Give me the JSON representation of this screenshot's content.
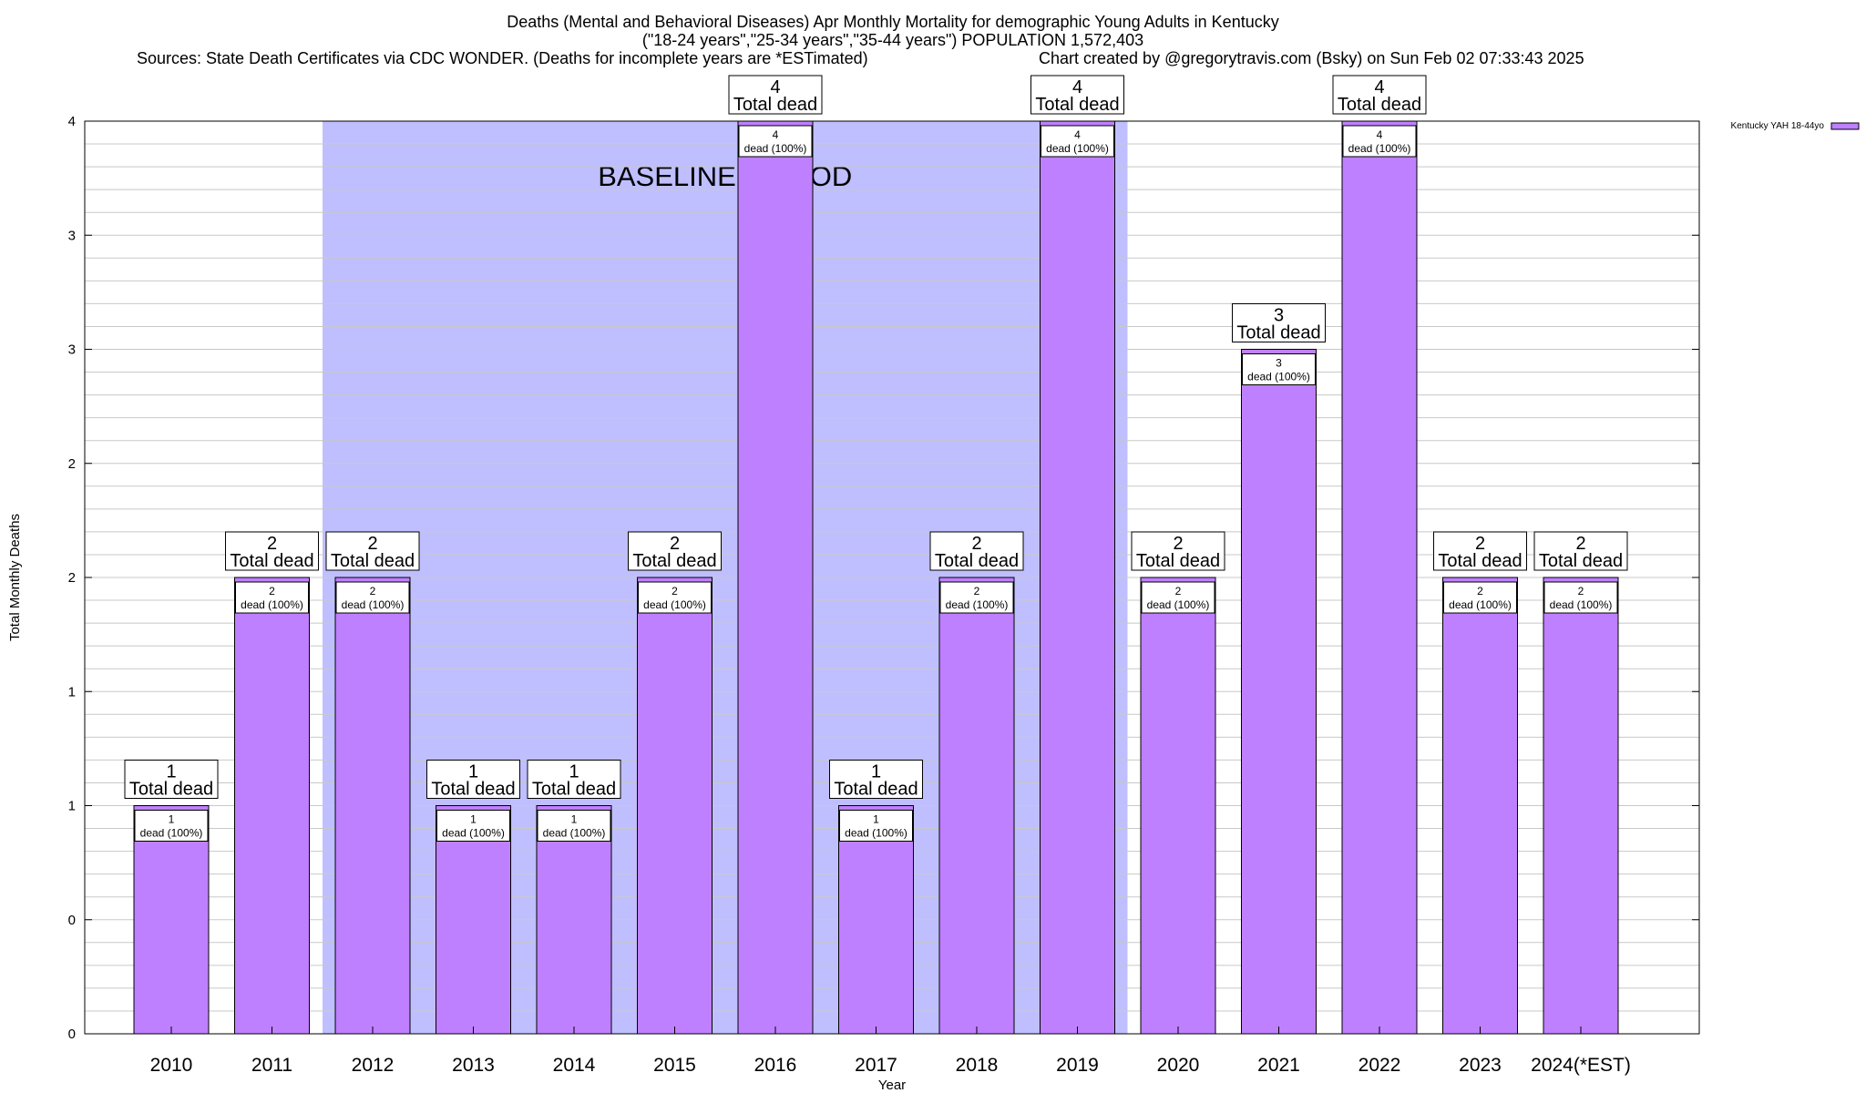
{
  "chart_data": {
    "type": "bar",
    "title_lines": [
      "Deaths (Mental and Behavioral Diseases) Apr Monthly Mortality for demographic Young Adults in Kentucky",
      "(\"18-24 years\",\"25-34 years\",\"35-44 years\") POPULATION 1,572,403"
    ],
    "source_text": "Sources: State Death Certificates via CDC WONDER. (Deaths for incomplete years are *ESTimated)",
    "credit_text": "Chart created by @gregorytravis.com (Bsky) on Sun Feb 02 07:33:43 2025",
    "xlabel": "Year",
    "ylabel": "Total Monthly Deaths",
    "ylim": [
      0,
      4
    ],
    "y_tick_values": [
      0,
      0.5,
      1,
      1.5,
      2,
      2.5,
      3,
      3.5,
      4
    ],
    "y_tick_labels": [
      "0",
      "0",
      "1",
      "1",
      "2",
      "2",
      "3",
      "3",
      "4"
    ],
    "grid": "horizontal",
    "legend_position": "top-right",
    "baseline_label": "BASELINE PERIOD",
    "baseline_range": [
      "2012",
      "2019"
    ],
    "categories": [
      "2010",
      "2011",
      "2012",
      "2013",
      "2014",
      "2015",
      "2016",
      "2017",
      "2018",
      "2019",
      "2020",
      "2021",
      "2022",
      "2023",
      "2024(*EST)"
    ],
    "series": [
      {
        "name": "Kentucky YAH 18-44yo",
        "values": [
          1,
          2,
          2,
          1,
          1,
          2,
          4,
          1,
          2,
          4,
          2,
          3,
          4,
          2,
          2
        ],
        "inner_labels": [
          "dead (100%)",
          "dead (100%)",
          "dead (100%)",
          "dead (100%)",
          "dead (100%)",
          "dead (100%)",
          "dead (100%)",
          "dead (100%)",
          "dead (100%)",
          "dead (100%)",
          "dead (100%)",
          "dead (100%)",
          "dead (100%)",
          "dead (100%)",
          "dead (100%)"
        ]
      }
    ],
    "total_label_text": "Total dead",
    "colors": {
      "bar": "#bf80ff",
      "baseline": "#bfbfff",
      "grid": "#c8c8c8"
    }
  }
}
